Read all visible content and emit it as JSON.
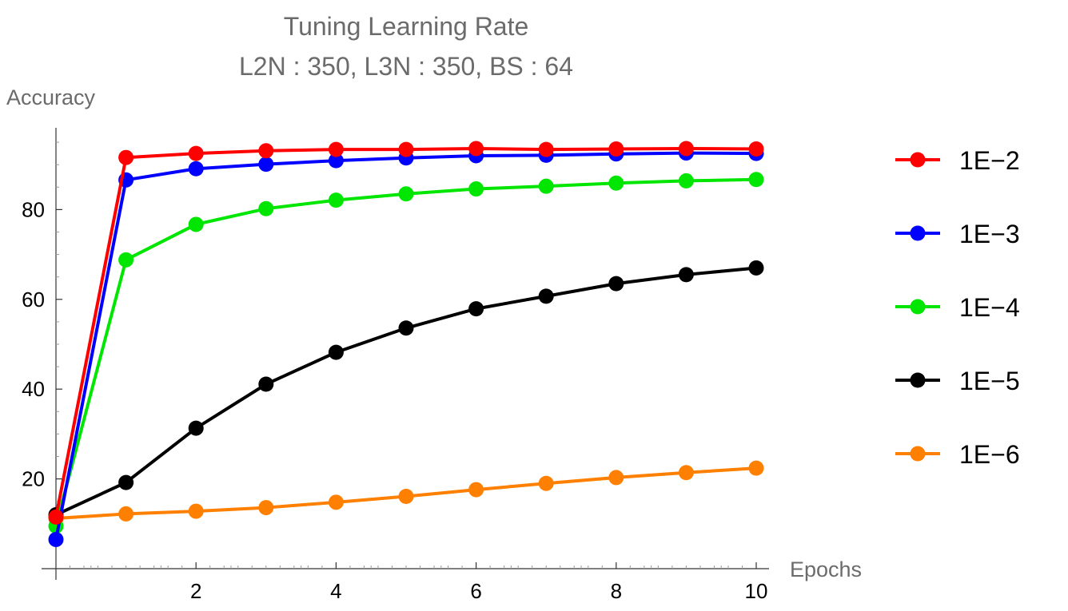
{
  "chart_data": {
    "type": "line",
    "title": "Tuning Learning Rate",
    "subtitle": "L2N : 350, L3N : 350, BS : 64",
    "xlabel": "Epochs",
    "ylabel": "Accuracy",
    "xlim": [
      0,
      10
    ],
    "ylim": [
      0,
      100
    ],
    "x_ticks": [
      2,
      4,
      6,
      8,
      10
    ],
    "y_ticks": [
      20,
      40,
      60,
      80
    ],
    "grid": false,
    "legend_position": "right",
    "x": [
      0,
      1,
      2,
      3,
      4,
      5,
      6,
      7,
      8,
      9,
      10
    ],
    "series": [
      {
        "name": "1E−2",
        "color": "#ff0000",
        "values": [
          11.5,
          91.6,
          92.5,
          93.1,
          93.4,
          93.4,
          93.6,
          93.4,
          93.5,
          93.6,
          93.5
        ]
      },
      {
        "name": "1E−3",
        "color": "#0000ff",
        "values": [
          6.5,
          86.6,
          89.1,
          90.1,
          90.9,
          91.5,
          92.0,
          92.1,
          92.4,
          92.6,
          92.5
        ]
      },
      {
        "name": "1E−4",
        "color": "#00e600",
        "values": [
          9.5,
          68.8,
          76.7,
          80.2,
          82.1,
          83.5,
          84.6,
          85.2,
          85.9,
          86.4,
          86.7
        ]
      },
      {
        "name": "1E−5",
        "color": "#000000",
        "values": [
          12.0,
          19.2,
          31.3,
          41.1,
          48.2,
          53.6,
          57.9,
          60.7,
          63.5,
          65.5,
          67.0
        ]
      },
      {
        "name": "1E−6",
        "color": "#ff8000",
        "values": [
          11.2,
          12.2,
          12.8,
          13.6,
          14.8,
          16.1,
          17.6,
          19.0,
          20.3,
          21.4,
          22.4
        ]
      }
    ]
  }
}
